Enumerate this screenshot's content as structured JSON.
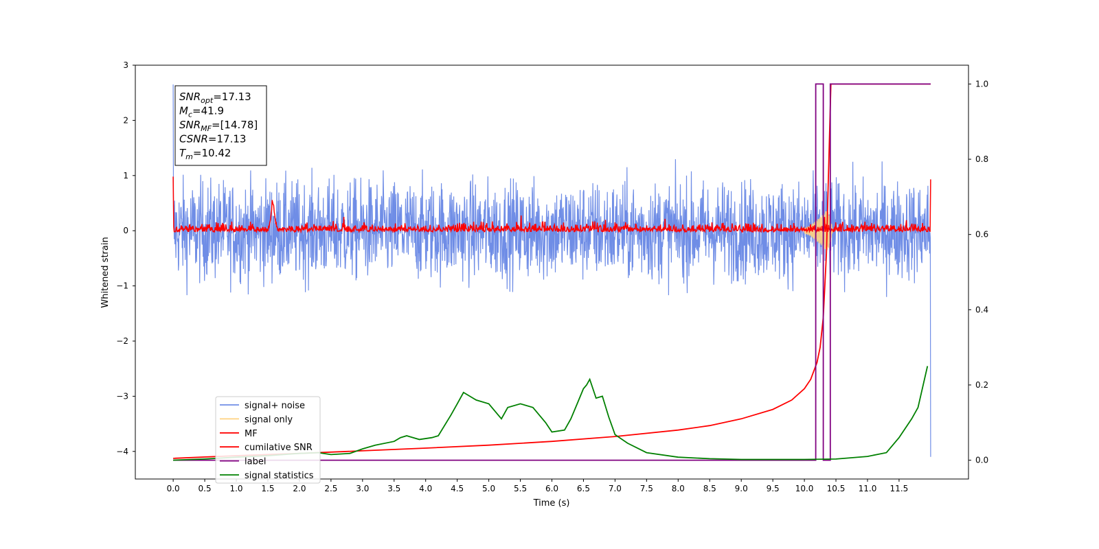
{
  "chart_data": {
    "type": "line",
    "xlabel": "Time (s)",
    "ylabel": "Whitened strain",
    "xlim": [
      -0.6,
      12.6
    ],
    "ylim": [
      -4.5,
      3.0
    ],
    "y2lim": [
      -0.05,
      1.05
    ],
    "x_ticks": [
      "0.0",
      "0.5",
      "1.0",
      "1.5",
      "2.0",
      "2.5",
      "3.0",
      "3.5",
      "4.0",
      "4.5",
      "5.0",
      "5.5",
      "6.0",
      "6.5",
      "7.0",
      "7.5",
      "8.0",
      "8.5",
      "9.0",
      "9.5",
      "10.0",
      "10.5",
      "11.0",
      "11.5"
    ],
    "y_ticks": [
      "−4",
      "−3",
      "−2",
      "−1",
      "0",
      "1",
      "2",
      "3"
    ],
    "y2_ticks": [
      "0.0",
      "0.2",
      "0.4",
      "0.6",
      "0.8",
      "1.0"
    ],
    "annotation": [
      {
        "var": "SNR",
        "sub": "opt",
        "value": "=17.13"
      },
      {
        "var": "M",
        "sub": "c",
        "value": "=41.9"
      },
      {
        "var": "SNR",
        "sub": "MF",
        "value": "=[14.78]"
      },
      {
        "var": "CSNR",
        "sub": "",
        "value": "=17.13"
      },
      {
        "var": "T",
        "sub": "m",
        "value": "=10.42"
      }
    ],
    "legend_position": "lower-left",
    "colors": {
      "signal_noise": "#6f8de6",
      "signal_only": "#ffd27f",
      "mf": "#ff0000",
      "cumulative_snr": "#ff0000",
      "label": "#800080",
      "signal_statistics": "#008000"
    },
    "series": [
      {
        "name": "signal+ noise",
        "axis": "left",
        "noise_amplitude": 0.45,
        "x_range": [
          0.0,
          12.0
        ]
      },
      {
        "name": "signal only",
        "axis": "left",
        "x": [
          10.0,
          10.1,
          10.2,
          10.3,
          10.35,
          10.4,
          10.45
        ],
        "amplitude": [
          0.05,
          0.1,
          0.2,
          0.3,
          0.38,
          0.3,
          0.0
        ]
      },
      {
        "name": "MF",
        "axis": "left",
        "noise_amplitude": 0.05,
        "x_range": [
          0.0,
          12.0
        ],
        "bump_at": 1.58,
        "bump_height": 0.45
      },
      {
        "name": "cumilative SNR",
        "axis": "right",
        "x": [
          0.0,
          1.0,
          2.0,
          3.0,
          4.0,
          5.0,
          6.0,
          7.0,
          8.0,
          8.5,
          9.0,
          9.5,
          9.8,
          10.0,
          10.1,
          10.2,
          10.25,
          10.3,
          10.35,
          10.38,
          10.42,
          12.0
        ],
        "y": [
          0.005,
          0.012,
          0.018,
          0.025,
          0.032,
          0.04,
          0.05,
          0.063,
          0.08,
          0.092,
          0.11,
          0.135,
          0.16,
          0.19,
          0.215,
          0.26,
          0.3,
          0.38,
          0.55,
          0.75,
          1.0,
          1.0
        ]
      },
      {
        "name": "label",
        "axis": "right",
        "x": [
          0.0,
          10.18,
          10.18,
          10.3,
          10.3,
          10.41,
          10.41,
          12.0
        ],
        "y": [
          0.0,
          0.0,
          1.0,
          1.0,
          0.0,
          0.0,
          1.0,
          1.0
        ]
      },
      {
        "name": "signal statistics",
        "axis": "right",
        "x": [
          0.0,
          0.5,
          1.0,
          1.5,
          2.0,
          2.3,
          2.5,
          2.8,
          3.0,
          3.2,
          3.5,
          3.6,
          3.7,
          3.9,
          4.1,
          4.2,
          4.4,
          4.5,
          4.6,
          4.7,
          4.8,
          5.0,
          5.2,
          5.3,
          5.5,
          5.7,
          5.9,
          6.0,
          6.2,
          6.3,
          6.4,
          6.5,
          6.55,
          6.6,
          6.7,
          6.8,
          6.9,
          7.0,
          7.2,
          7.5,
          8.0,
          8.5,
          9.0,
          10.0,
          10.5,
          11.0,
          11.3,
          11.5,
          11.7,
          11.8,
          11.95
        ],
        "y": [
          0.0,
          0.003,
          0.008,
          0.012,
          0.018,
          0.02,
          0.015,
          0.018,
          0.03,
          0.04,
          0.05,
          0.06,
          0.065,
          0.055,
          0.06,
          0.065,
          0.12,
          0.15,
          0.18,
          0.17,
          0.16,
          0.15,
          0.11,
          0.14,
          0.15,
          0.14,
          0.1,
          0.075,
          0.08,
          0.11,
          0.15,
          0.19,
          0.2,
          0.215,
          0.165,
          0.17,
          0.115,
          0.068,
          0.045,
          0.02,
          0.008,
          0.004,
          0.002,
          0.002,
          0.003,
          0.01,
          0.02,
          0.06,
          0.11,
          0.14,
          0.25
        ]
      }
    ]
  }
}
